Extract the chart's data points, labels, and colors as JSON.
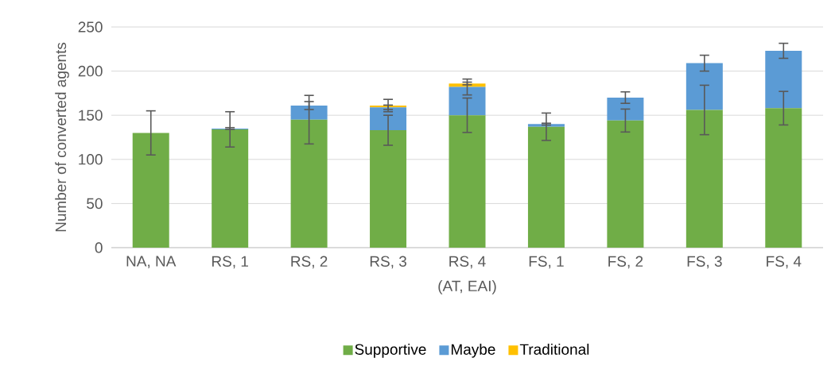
{
  "chart_data": {
    "type": "bar",
    "stacked": true,
    "xlabel": "(AT, EAI)",
    "ylabel": "Number of converted agents",
    "categories": [
      "NA, NA",
      "RS, 1",
      "RS, 2",
      "RS, 3",
      "RS, 4",
      "FS, 1",
      "FS, 2",
      "FS, 3",
      "FS, 4"
    ],
    "series": [
      {
        "name": "Supportive",
        "color": "#70ad47",
        "values": [
          130,
          134,
          145,
          133,
          150,
          137,
          144,
          156,
          158
        ],
        "errors": [
          25,
          20,
          27.5,
          17,
          19.5,
          15.5,
          13,
          28,
          19
        ]
      },
      {
        "name": "Maybe",
        "color": "#5b9bd5",
        "values": [
          null,
          1,
          16,
          26,
          32,
          3,
          26,
          53,
          65
        ],
        "errors": [
          null,
          1,
          4.5,
          2.5,
          9,
          1,
          6.5,
          9,
          8.5
        ]
      },
      {
        "name": "Traditional",
        "color": "#ffc000",
        "values": [
          null,
          null,
          null,
          2,
          4,
          null,
          null,
          null,
          null
        ],
        "errors": [
          null,
          null,
          null,
          7,
          1.5,
          null,
          null,
          null,
          null
        ]
      }
    ],
    "ylim": [
      0,
      250
    ],
    "yticks": [
      0,
      50,
      100,
      150,
      200,
      250
    ],
    "grid": "y",
    "legend": "bottom"
  }
}
